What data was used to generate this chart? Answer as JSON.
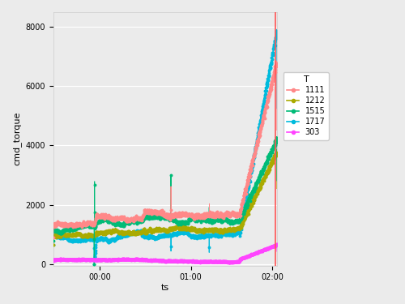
{
  "xlabel": "ts",
  "ylabel": "cmd_torque",
  "bg_color": "#EBEBEB",
  "grid_color": "white",
  "xlim": [
    0,
    9600
  ],
  "ylim": [
    -50,
    8500
  ],
  "yticks": [
    0,
    2000,
    4000,
    6000,
    8000
  ],
  "ytick_labels": [
    "0",
    "2000",
    "4000",
    "6000",
    "8000"
  ],
  "xtick_labels": [
    "00:00",
    "01:00",
    "02:00"
  ],
  "xtick_positions": [
    2000,
    5900,
    9400
  ],
  "vline_x": 9550,
  "vline_color": "#FF5555",
  "series": {
    "1111": {
      "color": "#FF8888",
      "lw": 0.7,
      "ms": 1.8
    },
    "1212": {
      "color": "#AAAA00",
      "lw": 0.7,
      "ms": 1.8
    },
    "1515": {
      "color": "#00BB77",
      "lw": 0.7,
      "ms": 1.8
    },
    "1717": {
      "color": "#00BBDD",
      "lw": 0.7,
      "ms": 1.8
    },
    "303": {
      "color": "#FF44FF",
      "lw": 0.7,
      "ms": 1.8
    }
  },
  "legend_labels": [
    "1111",
    "1212",
    "1515",
    "1717",
    "303"
  ]
}
